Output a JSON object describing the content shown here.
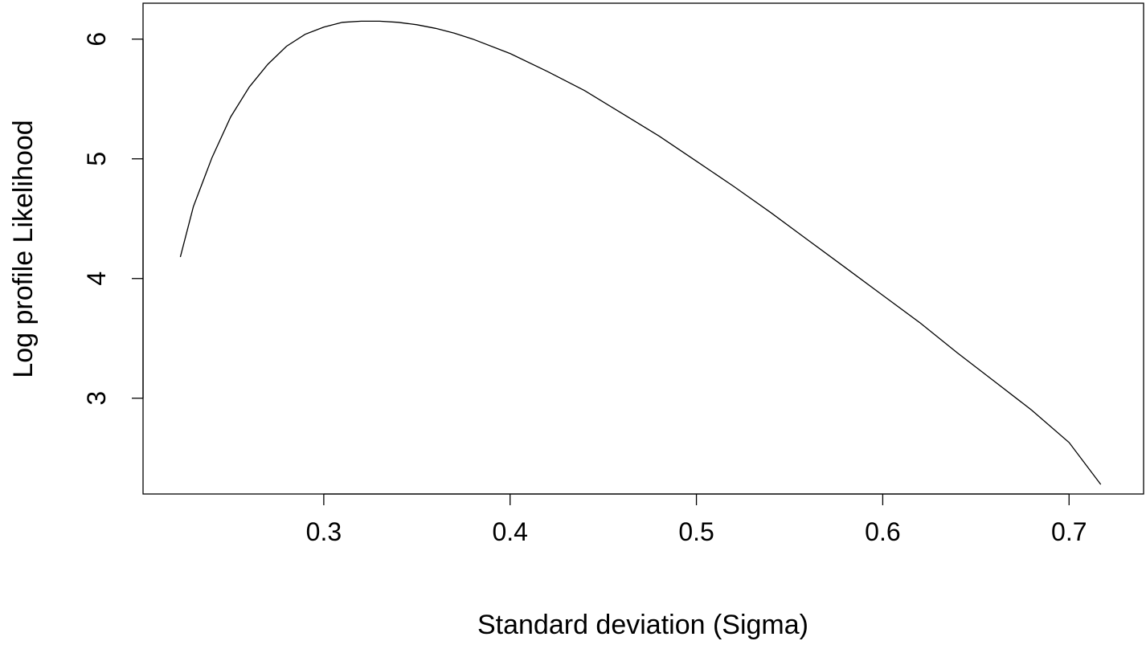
{
  "chart_data": {
    "type": "line",
    "title": "",
    "xlabel": "Standard deviation (Sigma)",
    "ylabel": "Log profile Likelihood",
    "xlim": [
      0.203,
      0.74
    ],
    "ylim": [
      2.2,
      6.3
    ],
    "xticks": [
      0.3,
      0.4,
      0.5,
      0.6,
      0.7
    ],
    "yticks": [
      3,
      4,
      5,
      6
    ],
    "grid": false,
    "series": [
      {
        "x": [
          0.223,
          0.23,
          0.24,
          0.25,
          0.26,
          0.27,
          0.28,
          0.29,
          0.3,
          0.31,
          0.32,
          0.33,
          0.34,
          0.35,
          0.36,
          0.37,
          0.38,
          0.4,
          0.42,
          0.44,
          0.46,
          0.48,
          0.5,
          0.52,
          0.54,
          0.56,
          0.58,
          0.6,
          0.62,
          0.64,
          0.66,
          0.68,
          0.7,
          0.717
        ],
        "y": [
          4.18,
          4.6,
          5.01,
          5.35,
          5.6,
          5.79,
          5.94,
          6.04,
          6.1,
          6.14,
          6.15,
          6.15,
          6.14,
          6.12,
          6.09,
          6.05,
          6.0,
          5.88,
          5.73,
          5.57,
          5.38,
          5.19,
          4.98,
          4.77,
          4.55,
          4.32,
          4.09,
          3.86,
          3.63,
          3.38,
          3.14,
          2.9,
          2.63,
          2.28
        ]
      }
    ]
  }
}
